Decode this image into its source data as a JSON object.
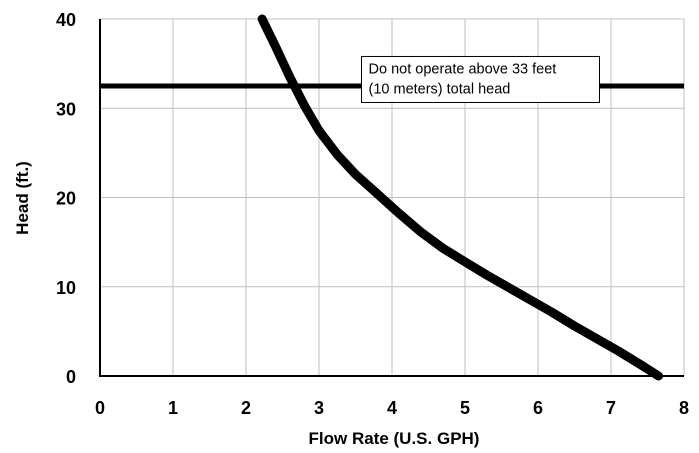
{
  "chart_data": {
    "type": "line",
    "title": "",
    "xlabel": "Flow Rate (U.S. GPH)",
    "ylabel": "Head (ft.)",
    "xlim": [
      0,
      8
    ],
    "ylim": [
      0,
      40
    ],
    "x_ticks": [
      "0",
      "1",
      "2",
      "3",
      "4",
      "5",
      "6",
      "7",
      "8"
    ],
    "y_ticks": [
      "0",
      "10",
      "20",
      "30",
      "40"
    ],
    "grid": true,
    "series": [
      {
        "color": "#000000",
        "x": [
          2.22,
          2.4,
          2.6,
          2.8,
          3.0,
          3.25,
          3.5,
          3.8,
          4.1,
          4.4,
          4.7,
          5.0,
          5.3,
          5.6,
          5.9,
          6.2,
          6.5,
          6.8,
          7.1,
          7.4,
          7.65
        ],
        "y": [
          40.0,
          37.0,
          33.5,
          30.3,
          27.5,
          24.8,
          22.6,
          20.4,
          18.2,
          16.1,
          14.3,
          12.8,
          11.3,
          9.9,
          8.5,
          7.1,
          5.6,
          4.2,
          2.8,
          1.3,
          0.0
        ]
      }
    ],
    "reference_line": {
      "y": 32.5,
      "color": "#000000"
    },
    "annotations": [
      {
        "lines": [
          "Do not operate above 33 feet",
          "(10 meters) total head"
        ],
        "x": 4.5,
        "y": 33.0
      }
    ]
  }
}
